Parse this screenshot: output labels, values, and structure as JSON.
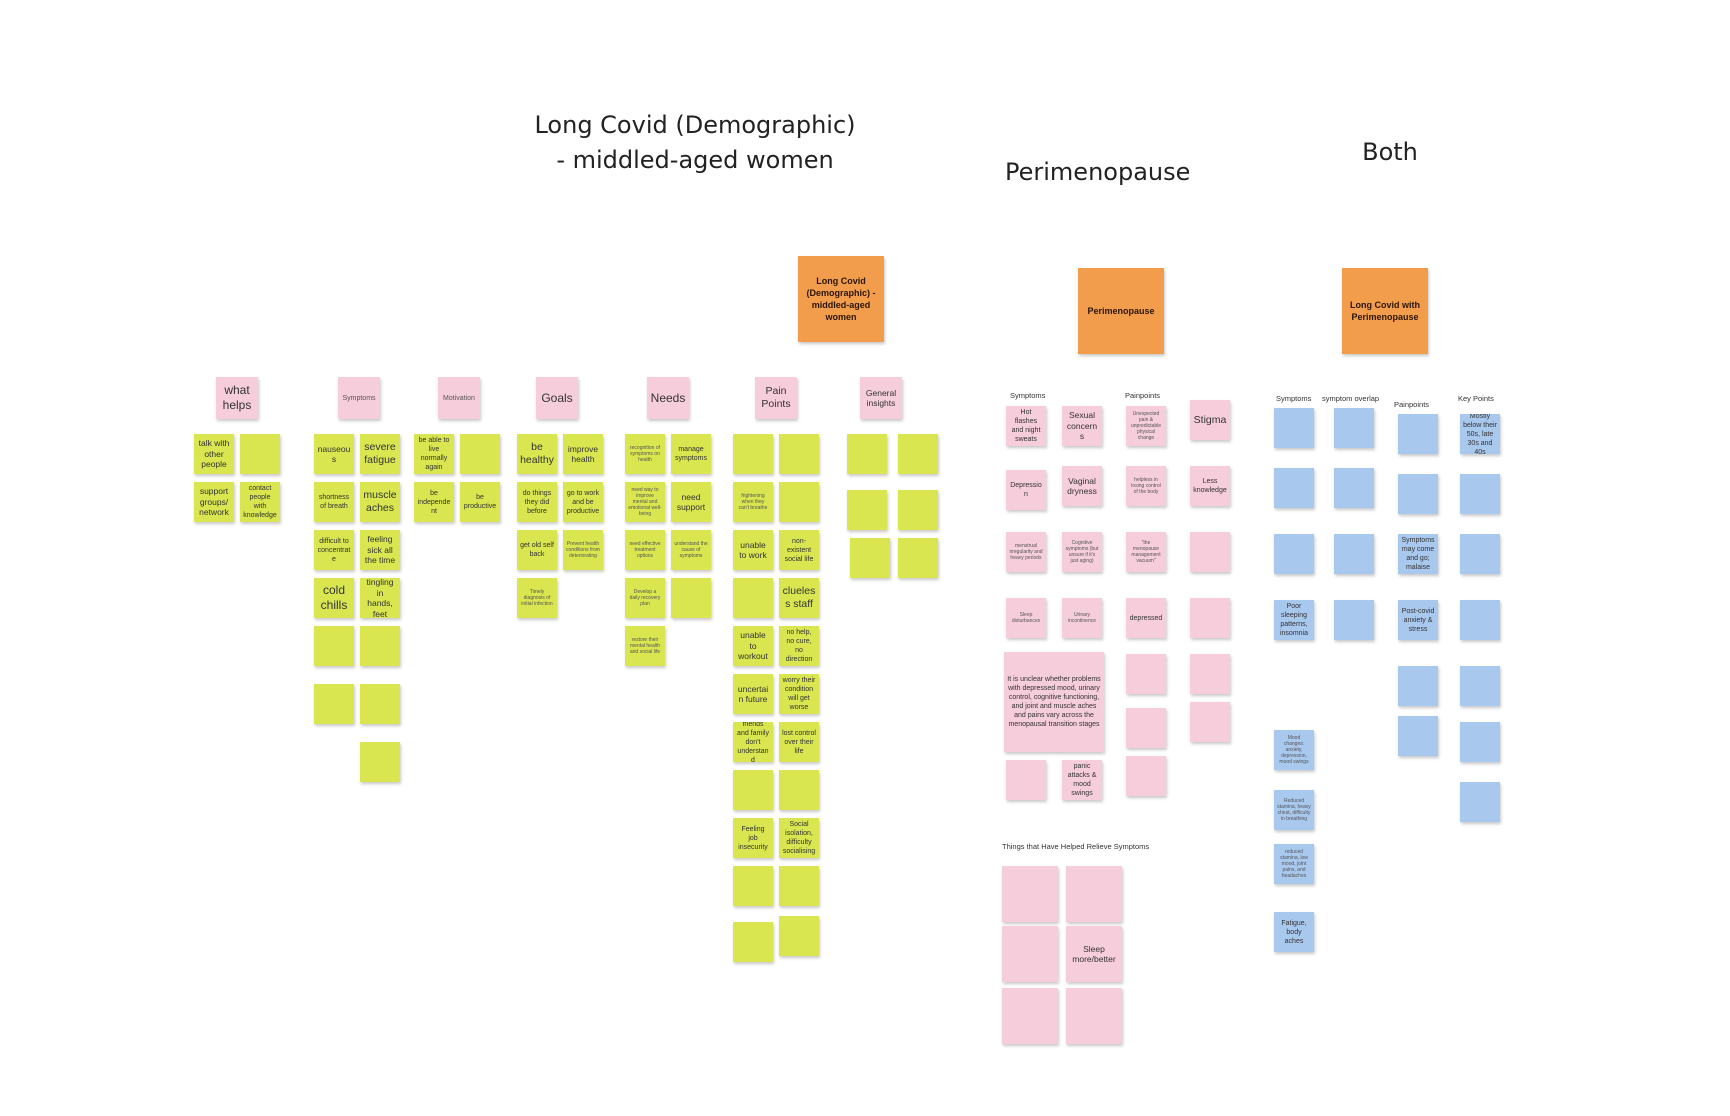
{
  "titles": {
    "long_covid": "Long Covid (Demographic)\n- middled-aged women",
    "perimenopause": "Perimenopause",
    "both": "Both"
  },
  "orange_notes": {
    "long_covid": "Long Covid (Demographic) - middled-aged women",
    "perimenopause": "Perimenopause",
    "both": "Long Covid with Perimenopause"
  },
  "long_covid_headers": {
    "what_helps": "what helps",
    "symptoms": "Symptoms",
    "motivation": "Motivation",
    "goals": "Goals",
    "needs": "Needs",
    "pain_points": "Pain Points",
    "general_insights": "General insights"
  },
  "notes": {
    "talk_with_others": "talk with other people",
    "support_groups": "support groups/ network",
    "contact_people": "contact people with knowledge",
    "nauseous": "nauseous",
    "severe_fatigue": "severe fatigue",
    "shortness_of_breath": "shortness of breath",
    "muscle_aches": "muscle aches",
    "difficult_to_concentrate": "difficult to concentrate",
    "feeling_sick": "feeling sick all the time",
    "cold_chills": "cold chills",
    "tingling": "tingling in hands, feet",
    "be_able_to_live": "be able to live normally again",
    "be_independent": "be independent",
    "be_productive": "be productive",
    "be_healthy": "be healthy",
    "improve_health": "improve health",
    "do_things_before": "do things they did before",
    "go_to_work": "go to work and be productive",
    "get_old_self_back": "get old self back",
    "prevent_health_conditions": "Prevent health conditions from deteriorating",
    "timely_diagnosis": "Timely diagnosis of initial infection",
    "recognition_of_symptoms": "recognition of symptoms on health",
    "manage_symptoms": "manage symptoms",
    "need_way_to_improve": "need way to improve mental and emotional well-being",
    "need_support": "need support",
    "need_effective_treatment": "need effective treatment options",
    "understand_cause": "understand the cause of symptoms",
    "develop_recovery_plan": "Develop a daily recovery plan",
    "restore_mental_health": "restore their mental health and social life",
    "cant_breathe": "frightening when they can't breathe",
    "unable_to_work": "unable to work",
    "non_existent_social_life": "non-existent social life",
    "clueless_staff": "clueless staff",
    "unable_to_workout": "unable to workout",
    "no_help": "no help, no cure, no direction",
    "uncertain_future": "uncertain future",
    "worry_condition": "worry their condition will get worse",
    "friends_family": "friends and family don't understand",
    "lost_control": "lost control over their life",
    "job_insecurity": "Feeling job insecurity",
    "social_isolation": "Social isolation, difficulty socialising",
    "hot_flashes": "Hot flashes and night sweats",
    "sexual_concerns": "Sexual concerns",
    "unexpected_pain": "Unexpected pain & unpredictable physical change",
    "stigma": "Stigma",
    "depression": "Depression",
    "vaginal_dryness": "Vaginal dryness",
    "helpless": "helpless in losing control of the body",
    "less_knowledge": "Less knowledge",
    "menstrual_irregularity": "menstrual irregularity and heavy periods",
    "cognitive_symptoms": "Cognitive symptoms (but unsure if it's just aging)",
    "management_vacuum": "\"the menopause management vacuum\"",
    "sleep_disturbances": "Sleep disturbances",
    "urinary_incontinence": "Urinary incontinence",
    "depressed": "depressed",
    "unclear_big": "It is unclear whether problems with depressed mood, urinary control, cognitive functioning, and joint and muscle aches and pains vary across the menopausal transition stages",
    "panic_attacks": "panic attacks & mood swings",
    "sleep_more": "Sleep more/better",
    "symptoms_may_come": "Symptoms may come and go; malaise",
    "poor_sleeping": "Poor sleeping patterns, insomnia",
    "post_covid_anxiety": "Post-covid anxiety & stress",
    "mostly_below": "Mostly below their 50s, late 30s and 40s",
    "mood_changes": "Mood changes: anxiety, depression, mood swings",
    "reduced_stamina_1": "Reduced stamina, heavy chest, difficulty in breathing",
    "reduced_stamina_2": "reduced stamina, low mood, joint pains, and headaches",
    "fatigue_body_aches": "Fatigue, body aches"
  },
  "labels": {
    "peri_symptoms": "Symptoms",
    "peri_painpoints": "Painpoints",
    "things_helped": "Things that Have Helped Relieve Symptoms",
    "both_symptoms": "Symptoms",
    "symptom_overlap": "symptom overlap",
    "both_painpoints": "Painpoints",
    "key_points": "Key Points"
  },
  "colors": {
    "green": "#d9e650",
    "pink": "#f6cddb",
    "blue": "#a9c8ee",
    "orange": "#f29d4b"
  }
}
